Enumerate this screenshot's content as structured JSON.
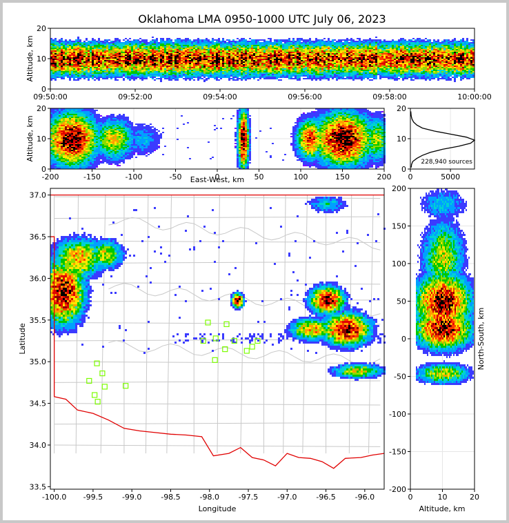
{
  "title": "Oklahoma LMA 0950-1000 UTC July 06, 2023",
  "chart_data": [
    {
      "type": "heatmap",
      "name": "time-height",
      "xlabel": "",
      "ylabel": "Altitude, km",
      "xticks": [
        "09:50:00",
        "09:52:00",
        "09:54:00",
        "09:56:00",
        "09:58:00",
        "10:00:00"
      ],
      "ylim": [
        0,
        20
      ],
      "yticks": [
        0,
        10,
        20
      ]
    },
    {
      "type": "heatmap",
      "name": "east-west-height",
      "xlabel": "East-West, km",
      "ylabel": "Altitude, km",
      "xlim": [
        -200,
        200
      ],
      "xticks": [
        -200,
        -150,
        -100,
        -50,
        0,
        50,
        100,
        150,
        200
      ],
      "ylim": [
        0,
        20
      ],
      "yticks": [
        0,
        10,
        20
      ],
      "clusters": [
        {
          "x": -175,
          "z": 10,
          "rx": 28,
          "rz": 8,
          "w": 1.0
        },
        {
          "x": -125,
          "z": 10,
          "rx": 22,
          "rz": 6,
          "w": 0.6
        },
        {
          "x": -90,
          "z": 10,
          "rx": 20,
          "rz": 5,
          "w": 0.25
        },
        {
          "x": 30,
          "z": 10,
          "rx": 6,
          "rz": 9,
          "w": 1.0
        },
        {
          "x": 110,
          "z": 10,
          "rx": 15,
          "rz": 6,
          "w": 0.8
        },
        {
          "x": 150,
          "z": 10,
          "rx": 32,
          "rz": 8,
          "w": 1.0
        },
        {
          "x": 190,
          "z": 10,
          "rx": 14,
          "rz": 7,
          "w": 0.5
        }
      ]
    },
    {
      "type": "line",
      "name": "altitude-histogram",
      "xlabel": "",
      "ylabel": "",
      "xticks": [
        0,
        5000
      ],
      "xlim": [
        0,
        8000
      ],
      "yticks": [
        0,
        10,
        20
      ],
      "ylim": [
        0,
        20
      ],
      "annotation": "228,940 sources",
      "x": [
        100,
        150,
        300,
        800,
        1500,
        2500,
        4000,
        6000,
        7500,
        8000,
        7000,
        5000,
        3000,
        1500,
        800,
        400,
        200,
        100,
        50
      ],
      "y": [
        0.5,
        1.5,
        2.5,
        3.5,
        4.5,
        5.5,
        6.5,
        7.5,
        8.5,
        9.5,
        10.5,
        11.5,
        12.5,
        13.5,
        14.5,
        15.5,
        16.5,
        17.5,
        19
      ]
    },
    {
      "type": "heatmap",
      "name": "plan-view",
      "xlabel": "Longitude",
      "ylabel": "Latitude",
      "xlim": [
        -100.05,
        -95.75
      ],
      "xticks": [
        -100.0,
        -99.5,
        -99.0,
        -98.5,
        -98.0,
        -97.5,
        -97.0,
        -96.5,
        -96.0
      ],
      "ylim": [
        33.47,
        37.08
      ],
      "yticks": [
        33.5,
        34.0,
        34.5,
        35.0,
        35.5,
        36.0,
        36.5,
        37.0
      ],
      "stations": [
        [
          -99.45,
          34.98
        ],
        [
          -99.38,
          34.86
        ],
        [
          -99.55,
          34.77
        ],
        [
          -99.35,
          34.7
        ],
        [
          -99.48,
          34.6
        ],
        [
          -99.44,
          34.52
        ],
        [
          -99.08,
          34.71
        ],
        [
          -98.02,
          35.47
        ],
        [
          -97.78,
          35.45
        ],
        [
          -98.08,
          35.25
        ],
        [
          -97.92,
          35.28
        ],
        [
          -97.93,
          35.02
        ],
        [
          -97.8,
          35.15
        ],
        [
          -97.68,
          35.25
        ],
        [
          -97.52,
          35.13
        ],
        [
          -97.45,
          35.18
        ],
        [
          -97.38,
          35.25
        ]
      ],
      "clusters": [
        {
          "lon": -99.9,
          "lat": 35.85,
          "rx": 0.25,
          "ry": 0.35,
          "w": 1.0
        },
        {
          "lon": -99.7,
          "lat": 36.25,
          "rx": 0.3,
          "ry": 0.22,
          "w": 0.7
        },
        {
          "lon": -99.35,
          "lat": 36.3,
          "rx": 0.2,
          "ry": 0.16,
          "w": 0.6
        },
        {
          "lon": -97.65,
          "lat": 35.75,
          "rx": 0.07,
          "ry": 0.08,
          "w": 1.0
        },
        {
          "lon": -96.5,
          "lat": 35.75,
          "rx": 0.2,
          "ry": 0.15,
          "w": 1.0
        },
        {
          "lon": -96.25,
          "lat": 35.4,
          "rx": 0.28,
          "ry": 0.18,
          "w": 1.0
        },
        {
          "lon": -96.7,
          "lat": 35.4,
          "rx": 0.25,
          "ry": 0.12,
          "w": 0.7
        },
        {
          "lon": -96.1,
          "lat": 34.9,
          "rx": 0.3,
          "ry": 0.08,
          "w": 0.6
        },
        {
          "lon": -96.5,
          "lat": 36.9,
          "rx": 0.25,
          "ry": 0.1,
          "w": 0.3
        }
      ]
    },
    {
      "type": "heatmap",
      "name": "north-south-height",
      "xlabel": "Altitude, km",
      "ylabel": "North-South, km",
      "xlim": [
        0,
        20
      ],
      "xticks": [
        0,
        10,
        20
      ],
      "ylim": [
        -200,
        200
      ],
      "yticks": [
        -200,
        -150,
        -100,
        -50,
        0,
        50,
        100,
        150,
        200
      ],
      "clusters": [
        {
          "z": 10,
          "y": 50,
          "rz": 8,
          "ry": 35,
          "w": 1.0
        },
        {
          "z": 10,
          "y": 15,
          "rz": 8,
          "ry": 25,
          "w": 1.0
        },
        {
          "z": 10,
          "y": 110,
          "rz": 6,
          "ry": 45,
          "w": 0.55
        },
        {
          "z": 10,
          "y": -45,
          "rz": 8,
          "ry": 12,
          "w": 0.6
        },
        {
          "z": 10,
          "y": 180,
          "rz": 7,
          "ry": 20,
          "w": 0.3
        }
      ]
    }
  ]
}
